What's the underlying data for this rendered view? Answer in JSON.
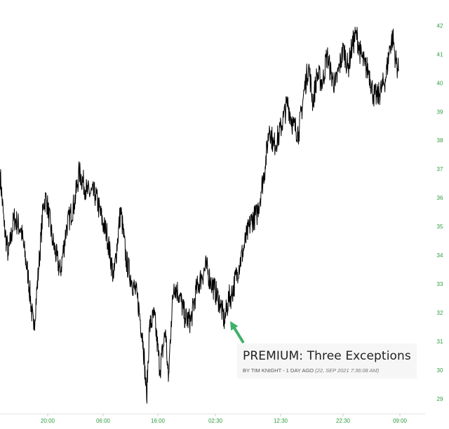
{
  "chart_data": {
    "type": "line",
    "title": "",
    "xlabel": "",
    "ylabel": "",
    "ylim": [
      28.8,
      42.4
    ],
    "y_ticks": [
      "29",
      "30",
      "31",
      "32",
      "33",
      "34",
      "35",
      "36",
      "37",
      "38",
      "39",
      "40",
      "41",
      "42"
    ],
    "x_ticks": [
      "20:00",
      "06:00",
      "16:00",
      "02:30",
      "12:30",
      "22:30",
      "09:00"
    ],
    "y_axis_position": "right",
    "grid": false,
    "series": [
      {
        "color": "#000000",
        "x": [
          0,
          6,
          12,
          20,
          30,
          40,
          48,
          55,
          62,
          66,
          75,
          86,
          95,
          106,
          113,
          124,
          136,
          148,
          152,
          162,
          172,
          180,
          188,
          196,
          204,
          209,
          213,
          220,
          228,
          236,
          240,
          244,
          248,
          256,
          264,
          272,
          280,
          288,
          294,
          300,
          306,
          314,
          320,
          326,
          330,
          338,
          346,
          352,
          358,
          366,
          372,
          378,
          384,
          390,
          398,
          404,
          410,
          418,
          426,
          434,
          440,
          446,
          452,
          460,
          466,
          472,
          478,
          484,
          490,
          496,
          502,
          508,
          514,
          520,
          526,
          532,
          538,
          544,
          550,
          556,
          560,
          564,
          568
        ],
        "values": [
          36.9,
          35.0,
          34.0,
          35.3,
          34.9,
          33.3,
          31.4,
          33.5,
          35.8,
          36.0,
          34.5,
          33.4,
          35.0,
          35.8,
          36.9,
          36.2,
          36.1,
          35.0,
          34.8,
          33.2,
          35.6,
          33.8,
          33.1,
          32.5,
          31.0,
          29.0,
          31.5,
          31.9,
          30.0,
          31.4,
          29.6,
          31.7,
          33.0,
          32.6,
          31.8,
          31.7,
          32.8,
          33.3,
          33.6,
          33.1,
          32.8,
          32.3,
          31.7,
          32.5,
          32.6,
          33.4,
          34.1,
          34.7,
          35.2,
          35.4,
          36.2,
          37.1,
          38.5,
          37.8,
          38.2,
          38.8,
          39.3,
          38.5,
          38.3,
          39.8,
          40.6,
          39.3,
          40.3,
          40.0,
          41.0,
          40.3,
          39.9,
          40.6,
          41.2,
          40.5,
          41.3,
          41.7,
          41.0,
          40.6,
          40.4,
          39.6,
          39.5,
          39.8,
          40.2,
          41.3,
          41.6,
          40.8,
          40.4
        ]
      }
    ],
    "annotation": {
      "arrow_color": "#3fb06a",
      "target": {
        "x": 326,
        "value": 31.8
      }
    }
  },
  "post": {
    "title": "PREMIUM: Three Exceptions",
    "byline": "BY TIM KNIGHT - 1 DAY AGO",
    "date": "(22, SEP 2021 7:36:08 AM)"
  }
}
